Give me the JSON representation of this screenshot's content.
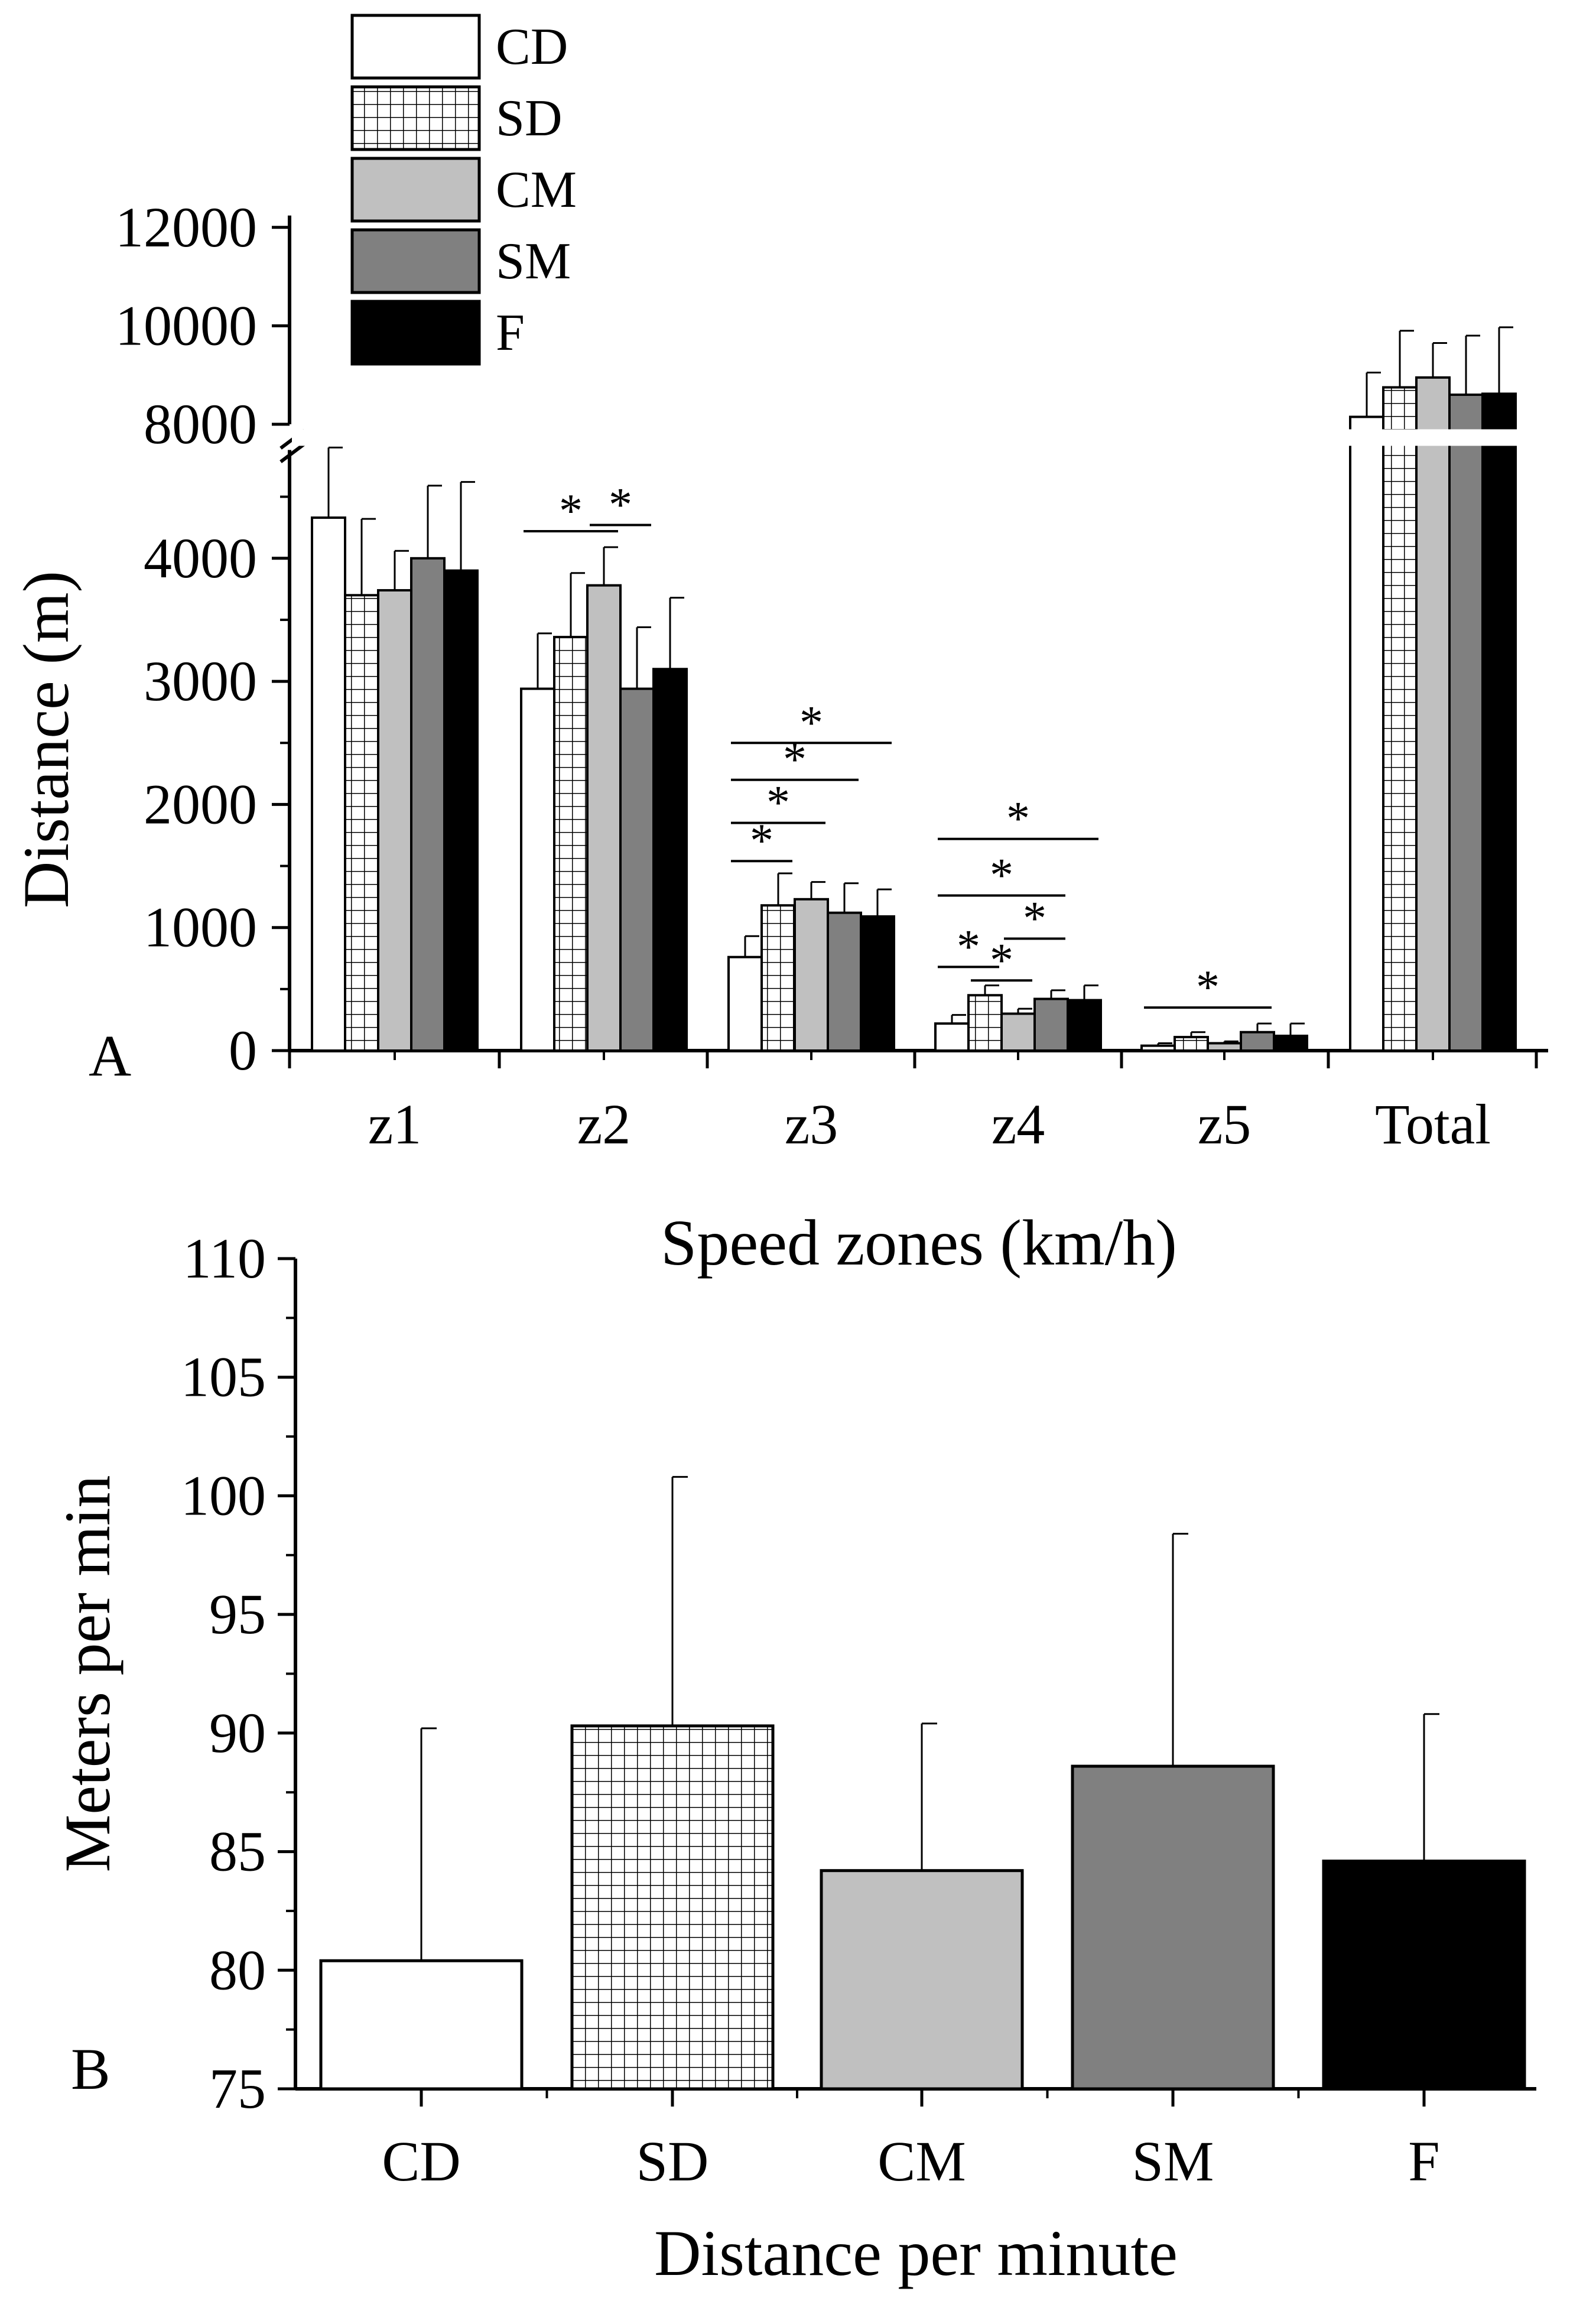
{
  "chart_data": [
    {
      "panel_label": "A",
      "type": "bar",
      "xlabel": "Speed zones (km/h)",
      "ylabel": "Distance (m)",
      "categories": [
        "z1",
        "z2",
        "z3",
        "z4",
        "z5",
        "Total"
      ],
      "yticks_lower": [
        "0",
        "1000",
        "2000",
        "3000",
        "4000"
      ],
      "yticks_upper": [
        "8000",
        "10000",
        "12000"
      ],
      "ylim_lower": [
        0,
        5000
      ],
      "ylim_upper": [
        8000,
        12000
      ],
      "axis_break_between": [
        5000,
        8000
      ],
      "series": [
        {
          "name": "CD",
          "fill": "#ffffff",
          "pattern": "none",
          "values": [
            4330,
            2940,
            760,
            220,
            40,
            8150
          ],
          "errors": [
            570,
            450,
            170,
            70,
            20,
            900
          ]
        },
        {
          "name": "SD",
          "fill": "#ffffff",
          "pattern": "grid",
          "values": [
            3700,
            3360,
            1180,
            450,
            110,
            8750
          ],
          "errors": [
            620,
            520,
            260,
            80,
            40,
            1150
          ]
        },
        {
          "name": "CM",
          "fill": "#c0c0c0",
          "pattern": "none",
          "values": [
            3740,
            3780,
            1230,
            300,
            60,
            8950
          ],
          "errors": [
            320,
            310,
            140,
            40,
            15,
            700
          ]
        },
        {
          "name": "SM",
          "fill": "#808080",
          "pattern": "none",
          "values": [
            4000,
            2940,
            1120,
            420,
            150,
            8600
          ],
          "errors": [
            590,
            500,
            240,
            70,
            70,
            1200
          ]
        },
        {
          "name": "F",
          "fill": "#000000",
          "pattern": "none",
          "values": [
            3900,
            3100,
            1090,
            410,
            120,
            8620
          ],
          "errors": [
            720,
            580,
            220,
            120,
            100,
            1350
          ]
        }
      ],
      "significance": [
        {
          "category": "z2",
          "from": "CD",
          "to": "CM",
          "label": "*",
          "level": 4220
        },
        {
          "category": "z2",
          "from": "CM",
          "to": "SM",
          "label": "*",
          "level": 4270
        },
        {
          "category": "z3",
          "from": "CD",
          "to": "SD",
          "label": "*",
          "level": 1540
        },
        {
          "category": "z3",
          "from": "CD",
          "to": "CM",
          "label": "*",
          "level": 1850
        },
        {
          "category": "z3",
          "from": "CD",
          "to": "SM",
          "label": "*",
          "level": 2200
        },
        {
          "category": "z3",
          "from": "CD",
          "to": "F",
          "label": "*",
          "level": 2500
        },
        {
          "category": "z4",
          "from": "CD",
          "to": "SD",
          "label": "*",
          "level": 680
        },
        {
          "category": "z4",
          "from": "SD",
          "to": "CM",
          "label": "*",
          "level": 570
        },
        {
          "category": "z4",
          "from": "CM",
          "to": "SM",
          "label": "*",
          "level": 910
        },
        {
          "category": "z4",
          "from": "CD",
          "to": "SM",
          "label": "*",
          "level": 1260
        },
        {
          "category": "z4",
          "from": "CD",
          "to": "F",
          "label": "*",
          "level": 1720
        },
        {
          "category": "z5",
          "from": "CD",
          "to": "SM",
          "label": "*",
          "level": 350
        }
      ],
      "legend": {
        "placement": "top-left",
        "entries": [
          "CD",
          "SD",
          "CM",
          "SM",
          "F"
        ]
      }
    },
    {
      "panel_label": "B",
      "type": "bar",
      "xlabel": "Distance per minute",
      "ylabel": "Meters per min",
      "categories": [
        "CD",
        "SD",
        "CM",
        "SM",
        "F"
      ],
      "yticks": [
        "75",
        "80",
        "85",
        "90",
        "95",
        "100",
        "105",
        "110"
      ],
      "ylim": [
        75,
        110
      ],
      "values": [
        80.4,
        90.3,
        84.2,
        88.6,
        84.6
      ],
      "errors": [
        9.8,
        10.5,
        6.2,
        9.8,
        6.2
      ],
      "fills": [
        "#ffffff",
        "#ffffff",
        "#c0c0c0",
        "#808080",
        "#000000"
      ],
      "patterns": [
        "none",
        "grid",
        "none",
        "none",
        "none"
      ]
    }
  ]
}
